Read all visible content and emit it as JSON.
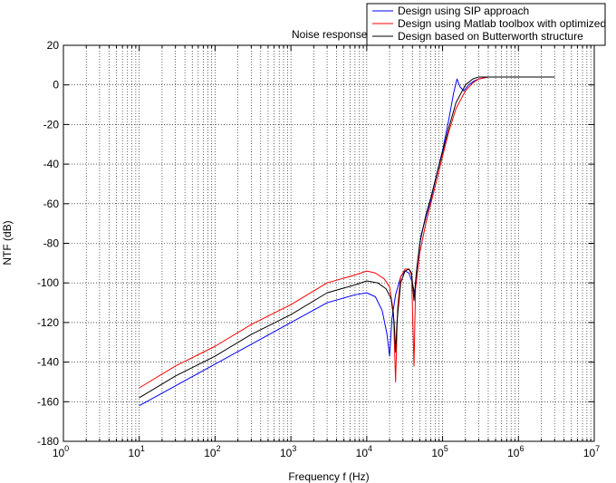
{
  "chart_data": {
    "type": "line",
    "title": "Noise response",
    "xlabel": "Frequency f (Hz)",
    "ylabel": "NTF (dB)",
    "xscale": "log",
    "xlim": [
      1,
      10000000
    ],
    "ylim": [
      -180,
      20
    ],
    "grid": true,
    "legend_position": "top-right",
    "x_ticks": [
      {
        "base": "10",
        "exp": "0"
      },
      {
        "base": "10",
        "exp": "1"
      },
      {
        "base": "10",
        "exp": "2"
      },
      {
        "base": "10",
        "exp": "3"
      },
      {
        "base": "10",
        "exp": "4"
      },
      {
        "base": "10",
        "exp": "5"
      },
      {
        "base": "10",
        "exp": "6"
      },
      {
        "base": "10",
        "exp": "7"
      }
    ],
    "y_ticks": [
      "20",
      "0",
      "-20",
      "-40",
      "-60",
      "-80",
      "-100",
      "-120",
      "-140",
      "-160",
      "-180"
    ],
    "series": [
      {
        "name": "Design using SIP approach",
        "color": "#0000ff",
        "points": [
          [
            10,
            -162
          ],
          [
            30,
            -152
          ],
          [
            100,
            -141
          ],
          [
            300,
            -131
          ],
          [
            1000,
            -120
          ],
          [
            3000,
            -110
          ],
          [
            7000,
            -106
          ],
          [
            10000,
            -105
          ],
          [
            13000,
            -107
          ],
          [
            16000,
            -114
          ],
          [
            18500,
            -126
          ],
          [
            20000,
            -137
          ],
          [
            21500,
            -118
          ],
          [
            24000,
            -106
          ],
          [
            28000,
            -97
          ],
          [
            32000,
            -94
          ],
          [
            36000,
            -95
          ],
          [
            40000,
            -100
          ],
          [
            43000,
            -106
          ],
          [
            46000,
            -92
          ],
          [
            52000,
            -76
          ],
          [
            60000,
            -67
          ],
          [
            70000,
            -58
          ],
          [
            85000,
            -44
          ],
          [
            100000,
            -33
          ],
          [
            120000,
            -18
          ],
          [
            140000,
            -4
          ],
          [
            155000,
            3
          ],
          [
            170000,
            -1
          ],
          [
            190000,
            -3
          ],
          [
            220000,
            0
          ],
          [
            260000,
            2
          ],
          [
            300000,
            3
          ],
          [
            400000,
            4
          ],
          [
            3000000,
            4
          ]
        ]
      },
      {
        "name": "Design using Matlab toolbox with optimized",
        "color": "#ff0000",
        "points": [
          [
            10,
            -153
          ],
          [
            30,
            -142
          ],
          [
            100,
            -132
          ],
          [
            300,
            -121
          ],
          [
            1000,
            -111
          ],
          [
            3000,
            -100
          ],
          [
            7000,
            -96
          ],
          [
            10000,
            -94
          ],
          [
            13000,
            -95
          ],
          [
            17000,
            -98
          ],
          [
            20000,
            -102
          ],
          [
            22500,
            -115
          ],
          [
            24000,
            -150
          ],
          [
            25500,
            -113
          ],
          [
            28000,
            -97
          ],
          [
            32000,
            -93
          ],
          [
            36000,
            -93
          ],
          [
            39000,
            -96
          ],
          [
            42000,
            -142
          ],
          [
            44000,
            -103
          ],
          [
            50000,
            -85
          ],
          [
            60000,
            -70
          ],
          [
            70000,
            -60
          ],
          [
            85000,
            -47
          ],
          [
            100000,
            -36
          ],
          [
            120000,
            -24
          ],
          [
            150000,
            -12
          ],
          [
            200000,
            -3
          ],
          [
            250000,
            1
          ],
          [
            300000,
            3
          ],
          [
            400000,
            4
          ],
          [
            3000000,
            4
          ]
        ]
      },
      {
        "name": "Design based on Butterworth structure",
        "color": "#000000",
        "points": [
          [
            10,
            -158
          ],
          [
            30,
            -147
          ],
          [
            100,
            -137
          ],
          [
            300,
            -126
          ],
          [
            1000,
            -116
          ],
          [
            3000,
            -105
          ],
          [
            7000,
            -101
          ],
          [
            10000,
            -99
          ],
          [
            14000,
            -100
          ],
          [
            18000,
            -103
          ],
          [
            21000,
            -108
          ],
          [
            23000,
            -120
          ],
          [
            24000,
            -135
          ],
          [
            25000,
            -120
          ],
          [
            28000,
            -100
          ],
          [
            32000,
            -94
          ],
          [
            36000,
            -93
          ],
          [
            39000,
            -95
          ],
          [
            42000,
            -109
          ],
          [
            45000,
            -95
          ],
          [
            50000,
            -80
          ],
          [
            60000,
            -66
          ],
          [
            70000,
            -57
          ],
          [
            85000,
            -44
          ],
          [
            100000,
            -34
          ],
          [
            120000,
            -22
          ],
          [
            150000,
            -9
          ],
          [
            200000,
            0
          ],
          [
            250000,
            3
          ],
          [
            300000,
            4
          ],
          [
            3000000,
            4
          ]
        ]
      }
    ]
  }
}
